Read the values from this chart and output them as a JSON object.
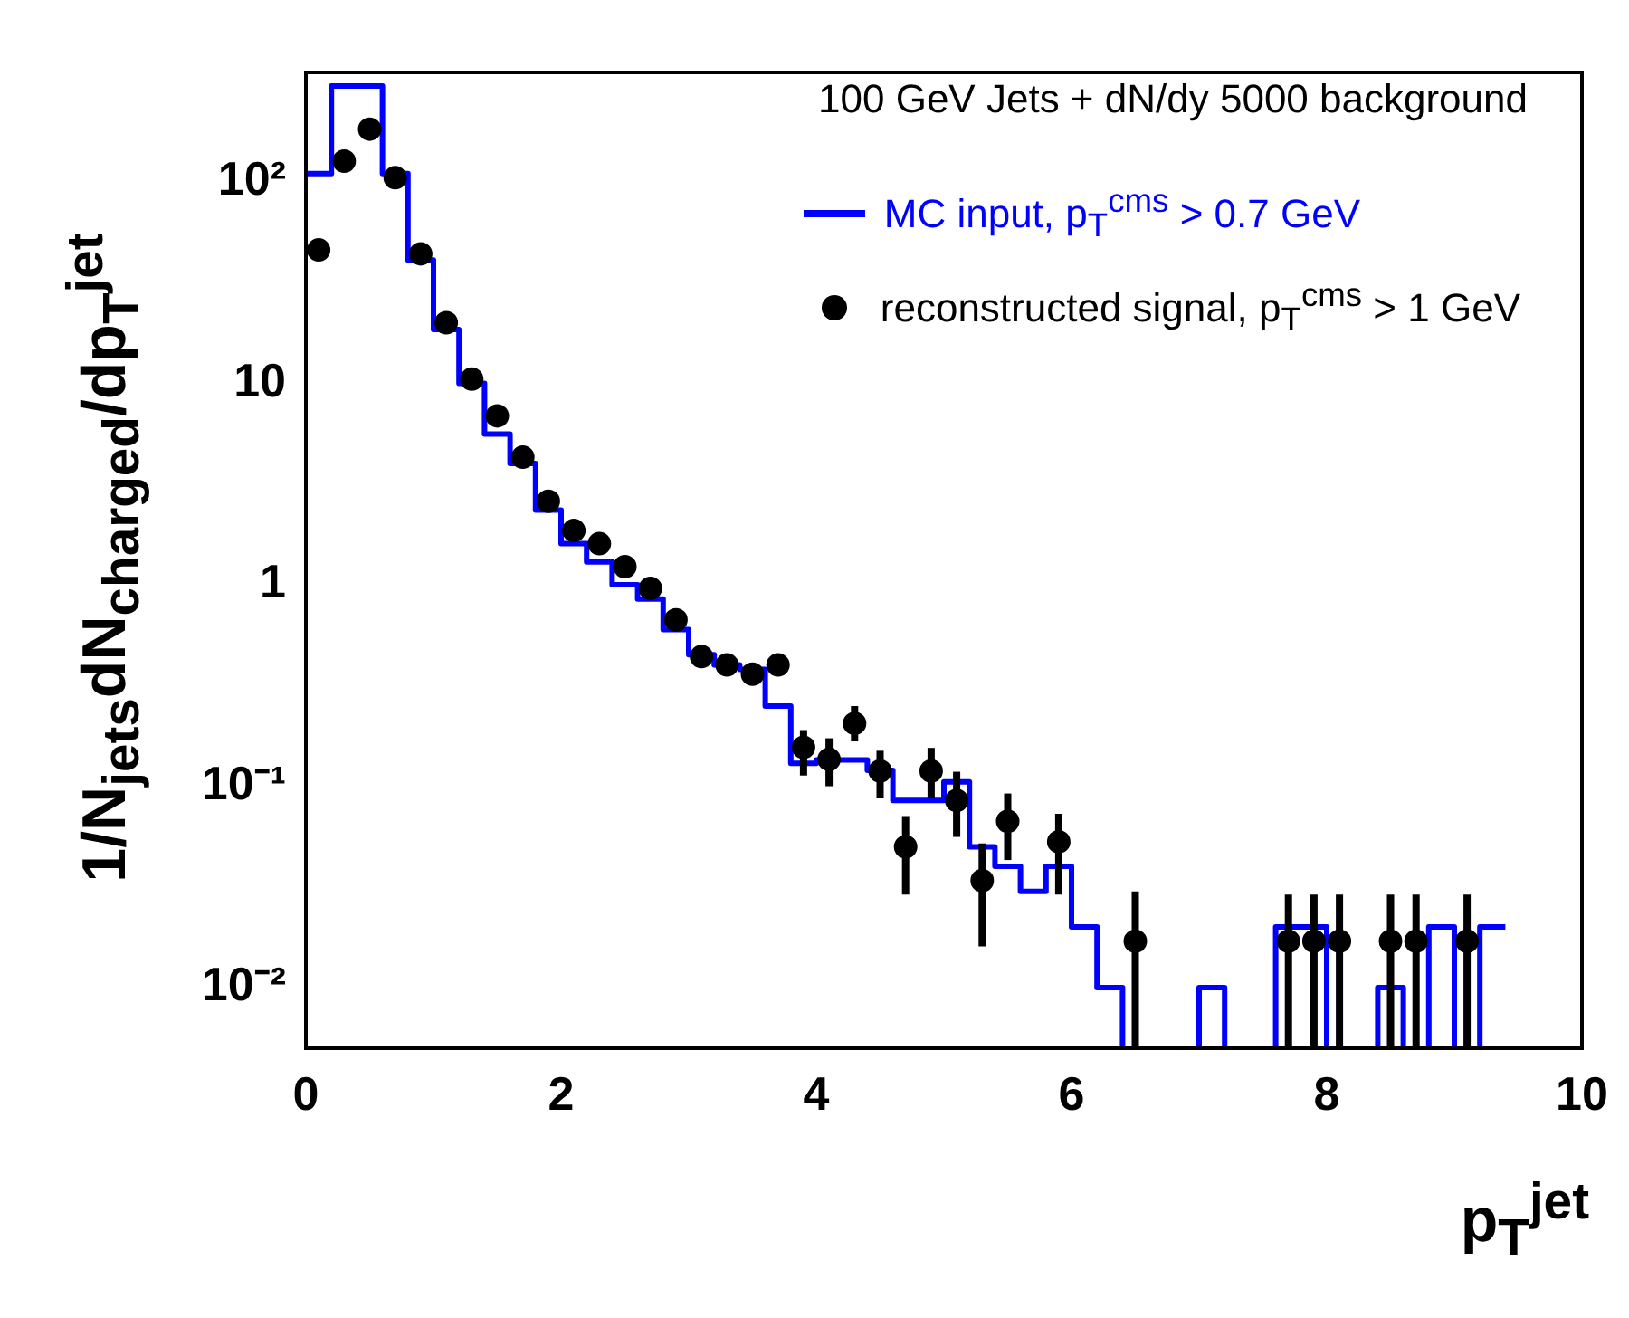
{
  "chart_data": {
    "type": "histogram",
    "title": "100 GeV Jets + dN/dy 5000 background",
    "xlabel": "p$_{T}$$^{jet}$",
    "ylabel": "1/N$_{jets}$dN$_{charged}$/dp$_{T}$$^{jet}$",
    "bins": [
      0,
      0.2,
      0.4,
      0.6,
      0.8,
      1,
      1.2,
      1.4,
      1.6,
      1.8,
      2,
      2.2,
      2.4,
      2.6,
      2.8,
      3,
      3.2,
      3.4,
      3.6,
      3.8,
      4,
      4.2,
      4.4,
      4.6,
      4.8,
      5,
      5.2,
      5.4,
      5.6,
      5.8,
      6,
      6.2,
      6.4,
      6.6,
      6.8,
      7,
      7.2,
      7.4,
      7.6,
      7.8,
      8,
      8.2,
      8.4,
      8.6,
      8.8,
      9,
      9.2,
      9.4
    ],
    "series": [
      {
        "name": "MC input, p$_{T}$$^{cms}$ > 0.7 GeV",
        "type": "histogram",
        "color": "#0000ff",
        "values": [
          110,
          300,
          300,
          110,
          41,
          18.5,
          10,
          5.6,
          4.0,
          2.35,
          1.6,
          1.3,
          1.0,
          0.85,
          0.6,
          0.45,
          0.4,
          0.38,
          0.25,
          0.13,
          0.135,
          0.135,
          0.12,
          0.085,
          0.085,
          0.105,
          0.05,
          0.04,
          0.03,
          0.04,
          0.02,
          0.01,
          null,
          null,
          null,
          0.01,
          null,
          null,
          0.02,
          0.02,
          null,
          null,
          0.01,
          null,
          0.02,
          null,
          0.02
        ]
      },
      {
        "name": "reconstructed signal, p$_{T}$$^{cms}$ > 1 GeV",
        "type": "scatter",
        "color": "#000000",
        "marker": "circle",
        "x": [
          0.1,
          0.3,
          0.5,
          0.7,
          0.9,
          1.1,
          1.3,
          1.5,
          1.7,
          1.9,
          2.1,
          2.3,
          2.5,
          2.7,
          2.9,
          3.1,
          3.3,
          3.5,
          3.7,
          3.9,
          4.1,
          4.3,
          4.5,
          4.7,
          4.9,
          5.1,
          5.3,
          5.5,
          5.9,
          6.5,
          7.7,
          7.9,
          8.1,
          8.5,
          8.7,
          9.1
        ],
        "values": [
          46,
          127,
          183,
          105,
          44,
          20,
          10.5,
          6.9,
          4.3,
          2.6,
          1.86,
          1.6,
          1.23,
          0.96,
          0.67,
          0.44,
          0.4,
          0.36,
          0.4,
          0.156,
          0.136,
          0.205,
          0.119,
          0.05,
          0.119,
          0.085,
          0.034,
          0.067,
          0.053,
          0.017,
          0.017,
          0.017,
          0.017,
          0.017,
          0.017,
          0.017
        ],
        "errors": [
          null,
          null,
          null,
          null,
          null,
          null,
          null,
          null,
          null,
          null,
          null,
          null,
          null,
          null,
          null,
          null,
          null,
          null,
          null,
          [
            0.113,
            0.19
          ],
          [
            0.1,
            0.173
          ],
          [
            0.167,
            0.25
          ],
          [
            0.087,
            0.15
          ],
          [
            0.029,
            0.071
          ],
          [
            0.087,
            0.155
          ],
          [
            0.056,
            0.118
          ],
          [
            0.016,
            0.052
          ],
          [
            0.043,
            0.092
          ],
          [
            0.029,
            0.073
          ],
          [
            0.005,
            0.03
          ],
          [
            0.005,
            0.029
          ],
          [
            0.005,
            0.029
          ],
          [
            0.005,
            0.029
          ],
          [
            0.005,
            0.029
          ],
          [
            0.005,
            0.029
          ],
          [
            0.005,
            0.029
          ]
        ]
      }
    ],
    "xlim": [
      0,
      10
    ],
    "xticks": [
      0,
      2,
      4,
      6,
      8,
      10
    ],
    "ylim": [
      0.005,
      350
    ],
    "yticks": [
      {
        "value": 0.01,
        "label": "10⁻²"
      },
      {
        "value": 0.1,
        "label": "10⁻¹"
      },
      1,
      10,
      {
        "value": 100,
        "label": "10²"
      }
    ],
    "log": "y",
    "legend": "top right"
  }
}
